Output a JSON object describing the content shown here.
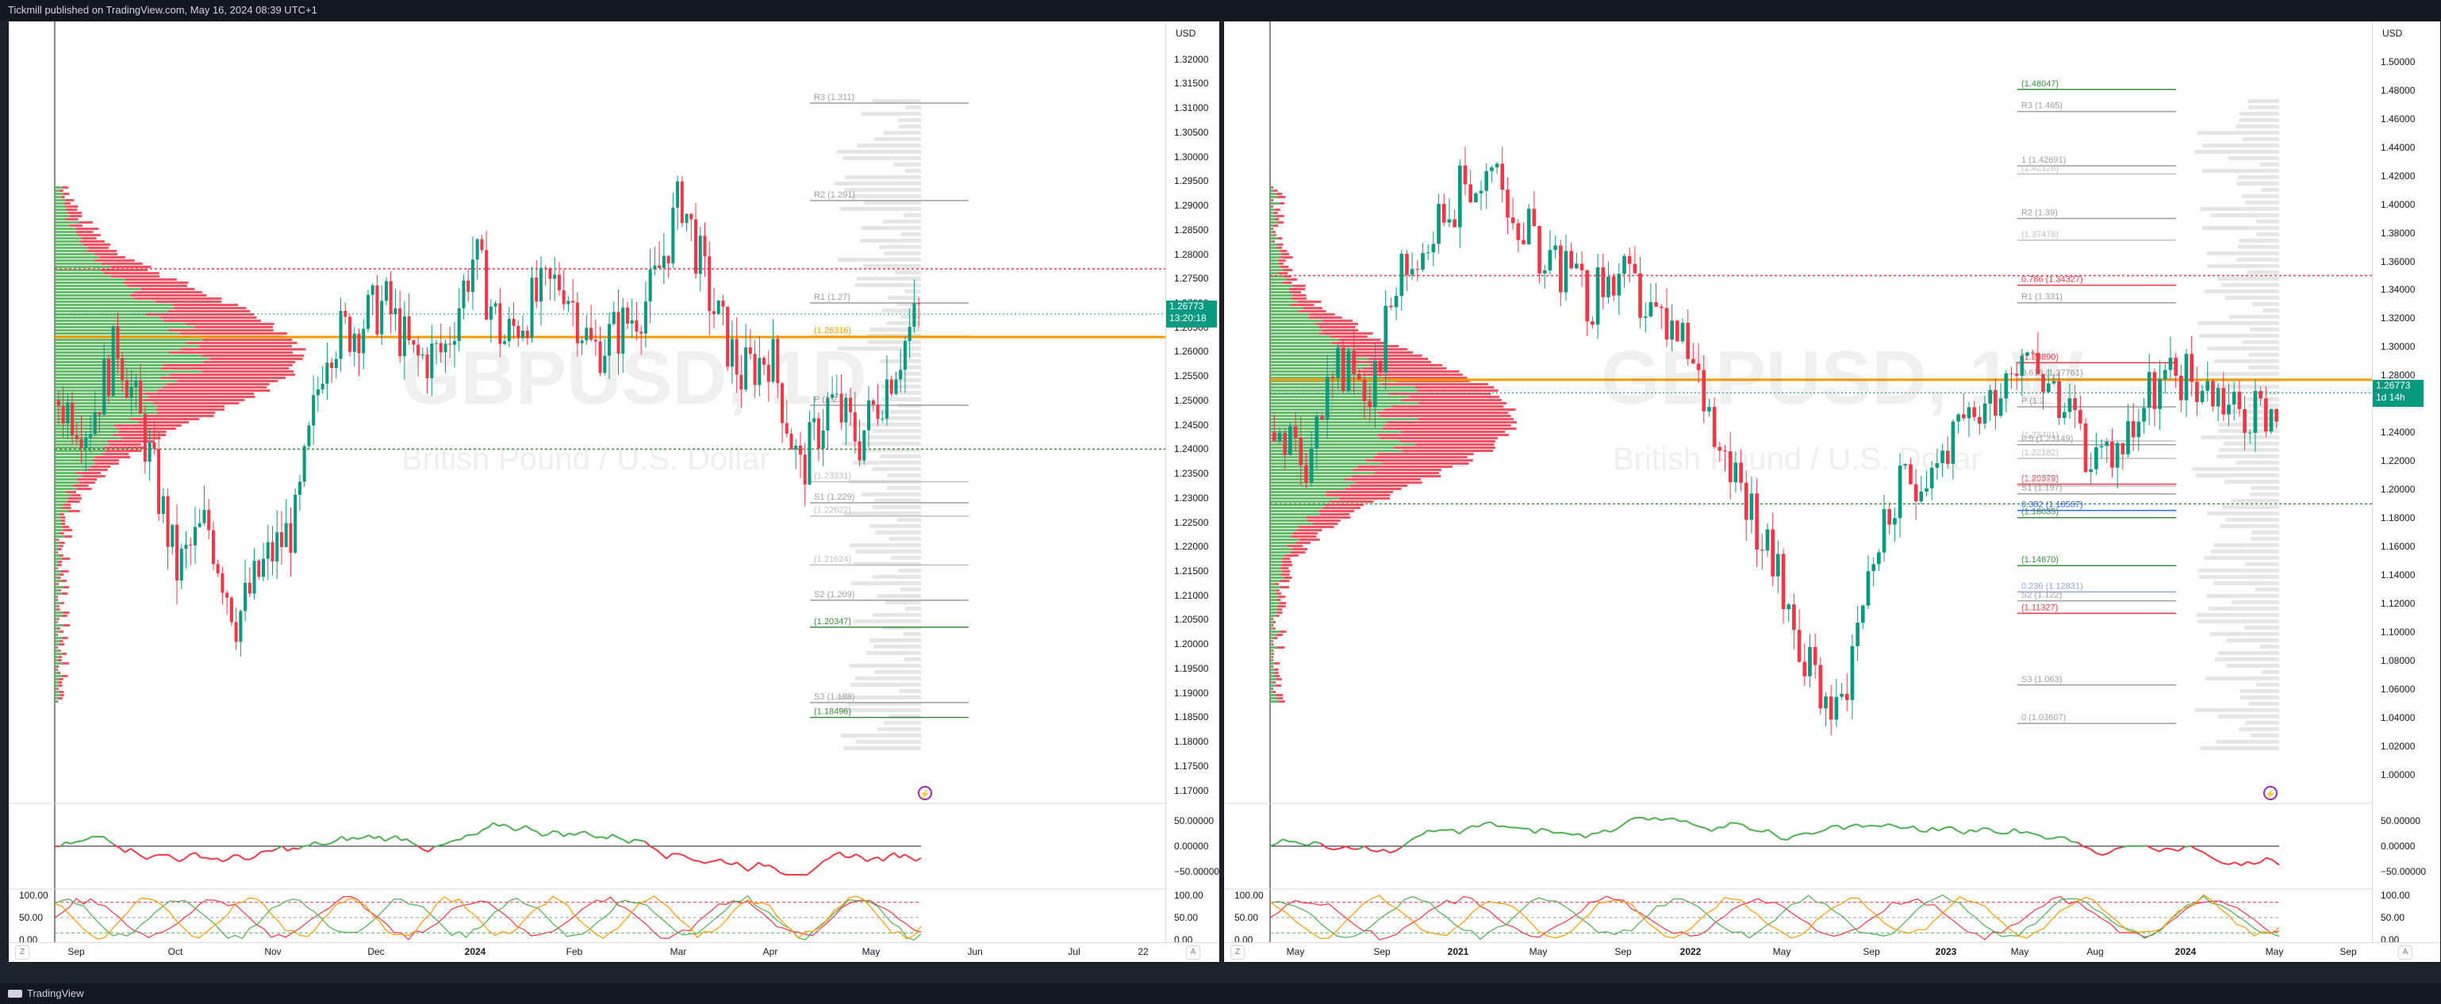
{
  "header": {
    "publish_text": "Tickmill published on TradingView.com, May 16, 2024 08:39 UTC+1"
  },
  "footer": {
    "brand": "TradingView"
  },
  "colors": {
    "bull": "#089981",
    "bear": "#f23645",
    "price_badge": "#089981",
    "pivot_gray": "#9e9e9e",
    "magenta": "#e040fb",
    "orange": "#ff9800",
    "green_line": "#388e3c",
    "volume_red": "#f23645",
    "volume_green": "#4caf50",
    "projection_blue": "#2962ff"
  },
  "icons": [
    "lightning-icon",
    "tradingview-logo-icon"
  ],
  "panes": [
    {
      "id": "daily",
      "symbol_watermark": "GBPUSD, 1D",
      "name_watermark": "British Pound / U.S. Dollar",
      "currency": "USD",
      "price_axis": [
        "1.32000",
        "1.31500",
        "1.31000",
        "1.30500",
        "1.30000",
        "1.29500",
        "1.29000",
        "1.28500",
        "1.28000",
        "1.27500",
        "1.27000",
        "1.26500",
        "1.26000",
        "1.25500",
        "1.25000",
        "1.24500",
        "1.24000",
        "1.23500",
        "1.23000",
        "1.22500",
        "1.22000",
        "1.21500",
        "1.21000",
        "1.20500",
        "1.20000",
        "1.19500",
        "1.19000",
        "1.18500",
        "1.18000",
        "1.17500",
        "1.17000"
      ],
      "price_range": [
        1.1683,
        1.3232
      ],
      "last_price": "1.26773",
      "countdown": "13:20:18",
      "time_axis": [
        {
          "label": "Sep",
          "bold": false
        },
        {
          "label": "Oct",
          "bold": false
        },
        {
          "label": "Nov",
          "bold": false
        },
        {
          "label": "Dec",
          "bold": false
        },
        {
          "label": "2024",
          "bold": true
        },
        {
          "label": "Feb",
          "bold": false
        },
        {
          "label": "Mar",
          "bold": false
        },
        {
          "label": "Apr",
          "bold": false
        },
        {
          "label": "May",
          "bold": false
        },
        {
          "label": "Jun",
          "bold": false
        },
        {
          "label": "Jul",
          "bold": false
        },
        {
          "label": "22",
          "bold": false
        }
      ],
      "levels": [
        {
          "text": "R3 (1.311)",
          "value": 1.311,
          "color": "#9e9e9e"
        },
        {
          "text": "R2 (1.291)",
          "value": 1.291,
          "color": "#9e9e9e"
        },
        {
          "text": "R1 (1.27)",
          "value": 1.27,
          "color": "#9e9e9e"
        },
        {
          "text": "(1.26316)",
          "value": 1.26316,
          "color": "#ff9800"
        },
        {
          "text": "P (1.2...",
          "value": 1.249,
          "color": "#9e9e9e"
        },
        {
          "text": "(1.23331)",
          "value": 1.23331,
          "color": "#c0c0c0"
        },
        {
          "text": "S1 (1.229)",
          "value": 1.229,
          "color": "#9e9e9e"
        },
        {
          "text": "(1.22627)",
          "value": 1.22627,
          "color": "#c0c0c0"
        },
        {
          "text": "(1.21624)",
          "value": 1.21624,
          "color": "#c0c0c0"
        },
        {
          "text": "S2 (1.209)",
          "value": 1.209,
          "color": "#9e9e9e"
        },
        {
          "text": "(1.20347)",
          "value": 1.20347,
          "color": "#388e3c"
        },
        {
          "text": "S3 (1.188)",
          "value": 1.188,
          "color": "#9e9e9e"
        },
        {
          "text": "(1.18496)",
          "value": 1.18496,
          "color": "#388e3c"
        }
      ],
      "rsi_labels": [
        "50.00000",
        "0.00000",
        "−50.00000"
      ],
      "stoch_labels": [
        "100.00",
        "50.00",
        "0.00"
      ]
    },
    {
      "id": "weekly",
      "symbol_watermark": "GBPUSD, 1W",
      "name_watermark": "British Pound / U.S. Dollar",
      "currency": "USD",
      "price_axis": [
        "1.50000",
        "1.48000",
        "1.46000",
        "1.44000",
        "1.42000",
        "1.40000",
        "1.38000",
        "1.36000",
        "1.34000",
        "1.32000",
        "1.30000",
        "1.28000",
        "1.26000",
        "1.24000",
        "1.22000",
        "1.20000",
        "1.18000",
        "1.16000",
        "1.14000",
        "1.12000",
        "1.10000",
        "1.08000",
        "1.06000",
        "1.04000",
        "1.02000",
        "1.00000"
      ],
      "price_range": [
        0.9834,
        1.5126
      ],
      "last_price": "1.26773",
      "countdown": "1d 14h",
      "time_axis": [
        {
          "label": "May",
          "bold": false
        },
        {
          "label": "Sep",
          "bold": false
        },
        {
          "label": "2021",
          "bold": true
        },
        {
          "label": "May",
          "bold": false
        },
        {
          "label": "Sep",
          "bold": false
        },
        {
          "label": "2022",
          "bold": true
        },
        {
          "label": "May",
          "bold": false
        },
        {
          "label": "Sep",
          "bold": false
        },
        {
          "label": "2023",
          "bold": true
        },
        {
          "label": "May",
          "bold": false
        },
        {
          "label": "Aug",
          "bold": false
        },
        {
          "label": "2024",
          "bold": true
        },
        {
          "label": "May",
          "bold": false
        },
        {
          "label": "Sep",
          "bold": false
        }
      ],
      "levels": [
        {
          "text": "(1.48047)",
          "value": 1.48047,
          "color": "#388e3c"
        },
        {
          "text": "R3 (1.465)",
          "value": 1.465,
          "color": "#9e9e9e"
        },
        {
          "text": "1 (1.42691)",
          "value": 1.42691,
          "color": "#9e9e9e"
        },
        {
          "text": "(1.42126)",
          "value": 1.42126,
          "color": "#c0c0c0"
        },
        {
          "text": "R2 (1.39)",
          "value": 1.39,
          "color": "#9e9e9e"
        },
        {
          "text": "(1.37478)",
          "value": 1.37478,
          "color": "#c0c0c0"
        },
        {
          "text": "0.786 (1.34327)",
          "value": 1.34327,
          "color": "#f23645"
        },
        {
          "text": "R1 (1.331)",
          "value": 1.331,
          "color": "#9e9e9e"
        },
        {
          "text": "(1.28890)",
          "value": 1.2889,
          "color": "#f23645"
        },
        {
          "text": "0.618 (1.27761)",
          "value": 1.27761,
          "color": "#9e9e9e"
        },
        {
          "text": "P (1.2...",
          "value": 1.258,
          "color": "#9e9e9e"
        },
        {
          "text": "(1.23401)",
          "value": 1.23401,
          "color": "#c0c0c0"
        },
        {
          "text": "0.5 (1.23149)",
          "value": 1.23149,
          "color": "#9e9e9e"
        },
        {
          "text": "(1.22182)",
          "value": 1.22182,
          "color": "#c0c0c0"
        },
        {
          "text": "(1.20379)",
          "value": 1.20379,
          "color": "#f23645"
        },
        {
          "text": "(1.20258)",
          "value": 1.20258,
          "color": "#c0c0c0"
        },
        {
          "text": "S1 (1.197)",
          "value": 1.197,
          "color": "#9e9e9e"
        },
        {
          "text": "0.382 (1.18537)",
          "value": 1.18537,
          "color": "#2962ff"
        },
        {
          "text": "(1.18035)",
          "value": 1.18035,
          "color": "#388e3c"
        },
        {
          "text": "(1.14670)",
          "value": 1.1467,
          "color": "#388e3c"
        },
        {
          "text": "0.236 (1.12831)",
          "value": 1.12831,
          "color": "#90a4e8"
        },
        {
          "text": "S2 (1.122)",
          "value": 1.122,
          "color": "#9e9e9e"
        },
        {
          "text": "(1.11327)",
          "value": 1.11327,
          "color": "#f23645"
        },
        {
          "text": "S3 (1.063)",
          "value": 1.063,
          "color": "#9e9e9e"
        },
        {
          "text": "0 (1.03607)",
          "value": 1.03607,
          "color": "#9e9e9e"
        }
      ],
      "rsi_labels": [
        "50.00000",
        "0.00000",
        "−50.00000"
      ],
      "stoch_labels": [
        "100.00",
        "50.00",
        "0.00"
      ]
    }
  ],
  "axis_buttons": {
    "z": "Z",
    "a": "A"
  }
}
